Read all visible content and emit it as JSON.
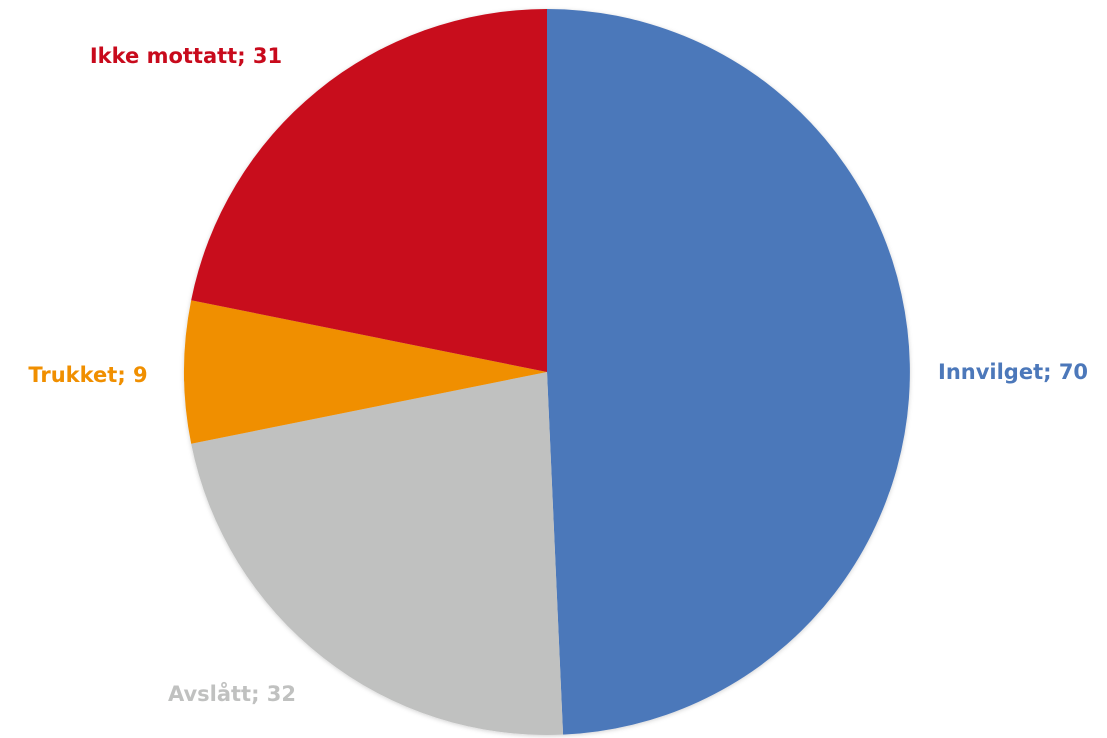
{
  "chart_data": {
    "type": "pie",
    "title": "",
    "slices": [
      {
        "label": "Innvilget",
        "value": 70,
        "color": "#4C78BA",
        "data_label": "Innvilget; 70"
      },
      {
        "label": "Avslått",
        "value": 32,
        "color": "#C0C1C0",
        "data_label": "Avslått; 32"
      },
      {
        "label": "Trukket",
        "value": 9,
        "color": "#F08F00",
        "data_label": "Trukket; 9"
      },
      {
        "label": "Ikke mottatt",
        "value": 31,
        "color": "#C80A1C",
        "data_label": "Ikke mottatt; 31"
      }
    ],
    "start_angle": "12 o'clock",
    "direction": "clockwise",
    "legend": "none"
  }
}
